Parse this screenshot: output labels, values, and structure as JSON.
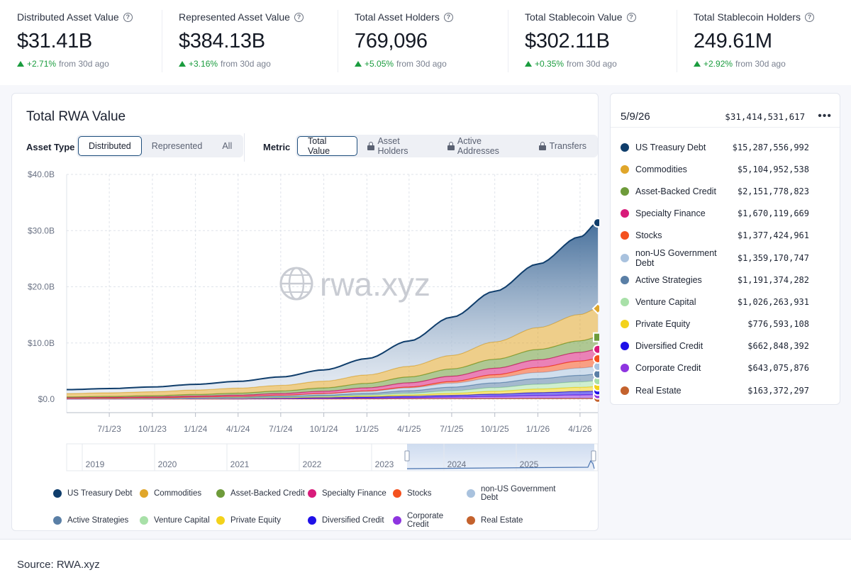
{
  "stats": [
    {
      "label": "Distributed Asset Value",
      "value": "$31.41B",
      "change": "+2.71%",
      "suffix": "from 30d ago"
    },
    {
      "label": "Represented Asset Value",
      "value": "$384.13B",
      "change": "+3.16%",
      "suffix": "from 30d ago"
    },
    {
      "label": "Total Asset Holders",
      "value": "769,096",
      "change": "+5.05%",
      "suffix": "from 30d ago"
    },
    {
      "label": "Total Stablecoin Value",
      "value": "$302.11B",
      "change": "+0.35%",
      "suffix": "from 30d ago"
    },
    {
      "label": "Total Stablecoin Holders",
      "value": "249.61M",
      "change": "+2.92%",
      "suffix": "from 30d ago"
    }
  ],
  "panel": {
    "title": "Total RWA Value",
    "asset_type_label": "Asset Type",
    "asset_type_options": [
      "Distributed",
      "Represented",
      "All"
    ],
    "asset_type_selected": "Distributed",
    "metric_label": "Metric",
    "metric_options": [
      "Total Value",
      "Asset Holders",
      "Active Addresses",
      "Transfers"
    ],
    "metric_selected": "Total Value",
    "watermark": "rwa.xyz"
  },
  "chart_data": {
    "type": "area",
    "stacked": true,
    "y_ticks": [
      "$40.0B",
      "$30.0B",
      "$20.0B",
      "$10.0B",
      "$0.0"
    ],
    "ylim": [
      0,
      40
    ],
    "x_ticks": [
      "7/1/23",
      "10/1/23",
      "1/1/24",
      "4/1/24",
      "7/1/24",
      "10/1/24",
      "1/1/25",
      "4/1/25",
      "7/1/25",
      "10/1/25",
      "1/1/26",
      "4/1/26"
    ],
    "x_dates": [
      "4/1/23",
      "7/1/23",
      "10/1/23",
      "1/1/24",
      "4/1/24",
      "7/1/24",
      "10/1/24",
      "1/1/25",
      "4/1/25",
      "7/1/25",
      "10/1/25",
      "1/1/26",
      "4/1/26",
      "5/9/26"
    ],
    "grid": true,
    "series": [
      {
        "name": "Real Estate",
        "color": "#c4622d",
        "values": [
          0.02,
          0.02,
          0.02,
          0.03,
          0.03,
          0.04,
          0.05,
          0.06,
          0.08,
          0.1,
          0.12,
          0.14,
          0.15,
          0.16
        ]
      },
      {
        "name": "Corporate Credit",
        "color": "#8e35e0",
        "values": [
          0.02,
          0.03,
          0.03,
          0.05,
          0.06,
          0.08,
          0.1,
          0.14,
          0.2,
          0.28,
          0.38,
          0.5,
          0.6,
          0.64
        ]
      },
      {
        "name": "Diversified Credit",
        "color": "#1f10e8",
        "values": [
          0.02,
          0.03,
          0.04,
          0.05,
          0.07,
          0.1,
          0.14,
          0.18,
          0.24,
          0.3,
          0.4,
          0.52,
          0.62,
          0.66
        ]
      },
      {
        "name": "Private Equity",
        "color": "#f3d21b",
        "values": [
          0.01,
          0.01,
          0.02,
          0.03,
          0.04,
          0.06,
          0.1,
          0.16,
          0.24,
          0.36,
          0.5,
          0.64,
          0.74,
          0.78
        ]
      },
      {
        "name": "Venture Capital",
        "color": "#a8e0a8",
        "values": [
          0.01,
          0.01,
          0.02,
          0.03,
          0.05,
          0.08,
          0.12,
          0.2,
          0.3,
          0.45,
          0.65,
          0.85,
          0.98,
          1.03
        ]
      },
      {
        "name": "Active Strategies",
        "color": "#5a7fa6",
        "values": [
          0.02,
          0.03,
          0.05,
          0.07,
          0.1,
          0.14,
          0.2,
          0.3,
          0.45,
          0.65,
          0.85,
          1.0,
          1.15,
          1.19
        ]
      },
      {
        "name": "non-US Government Debt",
        "color": "#a9c2de",
        "values": [
          0.04,
          0.05,
          0.07,
          0.1,
          0.13,
          0.18,
          0.25,
          0.35,
          0.5,
          0.7,
          0.9,
          1.1,
          1.3,
          1.36
        ]
      },
      {
        "name": "Stocks",
        "color": "#f4511e",
        "values": [
          0.01,
          0.01,
          0.01,
          0.02,
          0.02,
          0.03,
          0.05,
          0.08,
          0.15,
          0.3,
          0.55,
          0.9,
          1.25,
          1.38
        ]
      },
      {
        "name": "Specialty Finance",
        "color": "#d81b7a",
        "values": [
          0.1,
          0.12,
          0.14,
          0.18,
          0.22,
          0.3,
          0.4,
          0.55,
          0.75,
          0.95,
          1.15,
          1.35,
          1.55,
          1.67
        ]
      },
      {
        "name": "Asset-Backed Credit",
        "color": "#6e9b3a",
        "values": [
          0.15,
          0.18,
          0.22,
          0.28,
          0.35,
          0.45,
          0.6,
          0.8,
          1.05,
          1.3,
          1.6,
          1.85,
          2.05,
          2.15
        ]
      },
      {
        "name": "Commodities",
        "color": "#e0a62a",
        "values": [
          0.6,
          0.65,
          0.7,
          0.8,
          0.9,
          1.0,
          1.2,
          1.5,
          1.9,
          2.4,
          3.1,
          3.9,
          4.7,
          5.1
        ]
      },
      {
        "name": "US Treasury Debt",
        "color": "#0f3d6b",
        "values": [
          0.7,
          0.75,
          0.85,
          1.0,
          1.2,
          1.5,
          2.0,
          2.9,
          4.5,
          6.8,
          9.0,
          11.3,
          13.8,
          15.29
        ]
      }
    ]
  },
  "navigator_years": [
    "2019",
    "2020",
    "2021",
    "2022",
    "2023",
    "2024",
    "2025"
  ],
  "legend": [
    {
      "name": "US Treasury Debt",
      "color": "#0f3d6b"
    },
    {
      "name": "Commodities",
      "color": "#e0a62a"
    },
    {
      "name": "Asset-Backed Credit",
      "color": "#6e9b3a"
    },
    {
      "name": "Specialty Finance",
      "color": "#d81b7a"
    },
    {
      "name": "Stocks",
      "color": "#f4511e"
    },
    {
      "name": "non-US Government Debt",
      "color": "#a9c2de"
    },
    {
      "name": "Active Strategies",
      "color": "#5a7fa6"
    },
    {
      "name": "Venture Capital",
      "color": "#a8e0a8"
    },
    {
      "name": "Private Equity",
      "color": "#f3d21b"
    },
    {
      "name": "Diversified Credit",
      "color": "#1f10e8"
    },
    {
      "name": "Corporate Credit",
      "color": "#8e35e0"
    },
    {
      "name": "Real Estate",
      "color": "#c4622d"
    }
  ],
  "tooltip": {
    "date": "5/9/26",
    "total": "$31,414,531,617",
    "rows": [
      {
        "name": "US Treasury Debt",
        "value": "$15,287,556,992",
        "color": "#0f3d6b"
      },
      {
        "name": "Commodities",
        "value": "$5,104,952,538",
        "color": "#e0a62a"
      },
      {
        "name": "Asset-Backed Credit",
        "value": "$2,151,778,823",
        "color": "#6e9b3a"
      },
      {
        "name": "Specialty Finance",
        "value": "$1,670,119,669",
        "color": "#d81b7a"
      },
      {
        "name": "Stocks",
        "value": "$1,377,424,961",
        "color": "#f4511e"
      },
      {
        "name": "non-US Government Debt",
        "value": "$1,359,170,747",
        "color": "#a9c2de"
      },
      {
        "name": "Active Strategies",
        "value": "$1,191,374,282",
        "color": "#5a7fa6"
      },
      {
        "name": "Venture Capital",
        "value": "$1,026,263,931",
        "color": "#a8e0a8"
      },
      {
        "name": "Private Equity",
        "value": "$776,593,108",
        "color": "#f3d21b"
      },
      {
        "name": "Diversified Credit",
        "value": "$662,848,392",
        "color": "#1f10e8"
      },
      {
        "name": "Corporate Credit",
        "value": "$643,075,876",
        "color": "#8e35e0"
      },
      {
        "name": "Real Estate",
        "value": "$163,372,297",
        "color": "#c4622d"
      }
    ]
  },
  "source": "Source: RWA.xyz"
}
